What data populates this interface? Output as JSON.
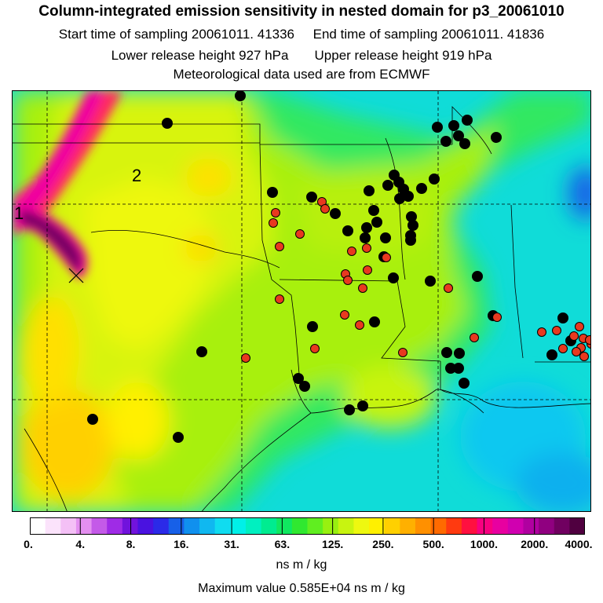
{
  "header": {
    "title": "Column-integrated emission sensitivity in nested domain for p3_20061010",
    "start_label": "Start time of sampling 20061011. 41336",
    "end_label": "End time of sampling 20061011. 41836",
    "lower_label": "Lower release height  927 hPa",
    "upper_label": "Upper release height  919 hPa",
    "met_label": "Meteorological data used are from ECMWF"
  },
  "map": {
    "plume_labels": [
      "1",
      "2"
    ],
    "dot_colors": {
      "red": "#e8391f",
      "black": "#000000"
    }
  },
  "colorbar": {
    "ticks": [
      "0.",
      "4.",
      "8.",
      "16.",
      "31.",
      "63.",
      "125.",
      "250.",
      "500.",
      "1000.",
      "2000.",
      "4000."
    ],
    "colors": [
      "#ffffff",
      "#fbe3fb",
      "#f4c0f6",
      "#e48ff0",
      "#c45ae8",
      "#9f2be6",
      "#7113dc",
      "#4a12e0",
      "#2b2ae8",
      "#1760e8",
      "#1090ee",
      "#10b8f0",
      "#10dcf0",
      "#00f0e8",
      "#00f0c0",
      "#00ec90",
      "#10e860",
      "#30e830",
      "#60ee20",
      "#98f010",
      "#c8f410",
      "#eef810",
      "#fff000",
      "#ffd000",
      "#ffb000",
      "#ff9000",
      "#ff6a00",
      "#ff3a10",
      "#ff1040",
      "#f80080",
      "#e800a0",
      "#d000b0",
      "#b000a0",
      "#900080",
      "#700060",
      "#500040"
    ],
    "units": "ns m / kg",
    "max_label": "Maximum value  0.585E+04 ns m / kg"
  }
}
